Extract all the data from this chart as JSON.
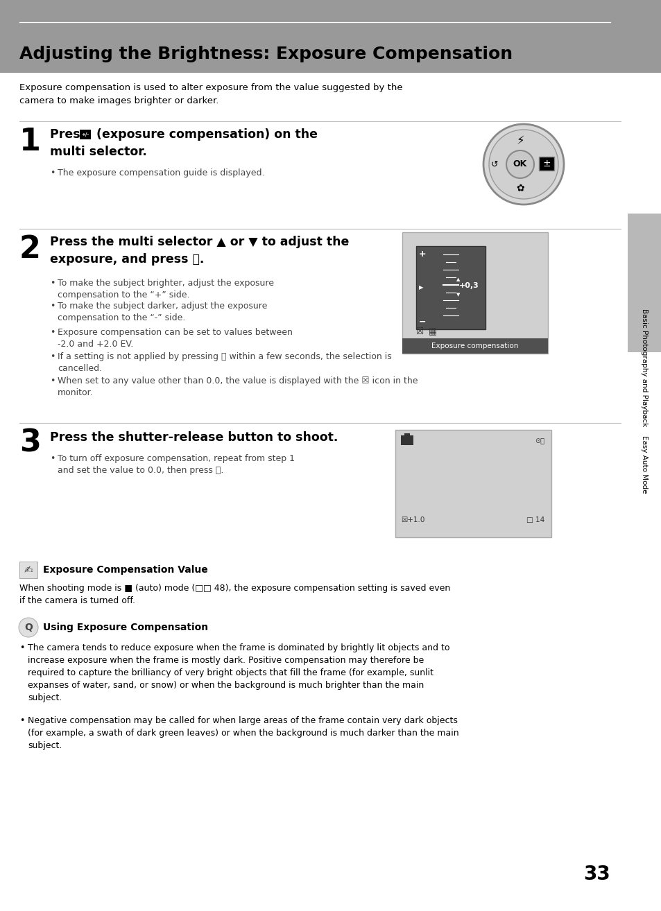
{
  "title": "Adjusting the Brightness: Exposure Compensation",
  "bg_color": "#ffffff",
  "header_bg": "#999999",
  "page_number": "33",
  "intro_text": "Exposure compensation is used to alter exposure from the value suggested by the\ncamera to make images brighter or darker.",
  "step1_num": "1",
  "step1_bullet": "The exposure compensation guide is displayed.",
  "step2_num": "2",
  "step2_bullets": [
    "To make the subject brighter, adjust the exposure\ncompensation to the “+” side.",
    "To make the subject darker, adjust the exposure\ncompensation to the “-” side.",
    "Exposure compensation can be set to values between\n-2.0 and +2.0 EV.",
    "If a setting is not applied by pressing ⒪ within a few seconds, the selection is\ncancelled.",
    "When set to any value other than 0.0, the value is displayed with the ☒ icon in the\nmonitor."
  ],
  "step3_num": "3",
  "step3_title": "Press the shutter-release button to shoot.",
  "step3_bullet": "To turn off exposure compensation, repeat from step 1\nand set the value to 0.0, then press ⒪.",
  "note1_title": "Exposure Compensation Value",
  "note1_text": "When shooting mode is ■ (auto) mode (□□ 48), the exposure compensation setting is saved even\nif the camera is turned off.",
  "note2_title": "Using Exposure Compensation",
  "note2_bullet1": "The camera tends to reduce exposure when the frame is dominated by brightly lit objects and to\nincrease exposure when the frame is mostly dark. Positive compensation may therefore be\nrequired to capture the brilliancy of very bright objects that fill the frame (for example, sunlit\nexpanses of water, sand, or snow) or when the background is much brighter than the main\nsubject.",
  "note2_bullet2": "Negative compensation may be called for when large areas of the frame contain very dark objects\n(for example, a swath of dark green leaves) or when the background is much darker than the main\nsubject.",
  "sidebar_text1": "Basic Photography and Playback",
  "sidebar_text2": "Easy Auto Mode",
  "header_line_color": "#cccccc",
  "divider_color": "#bbbbbb",
  "bullet_color": "#444444",
  "text_color": "#000000"
}
